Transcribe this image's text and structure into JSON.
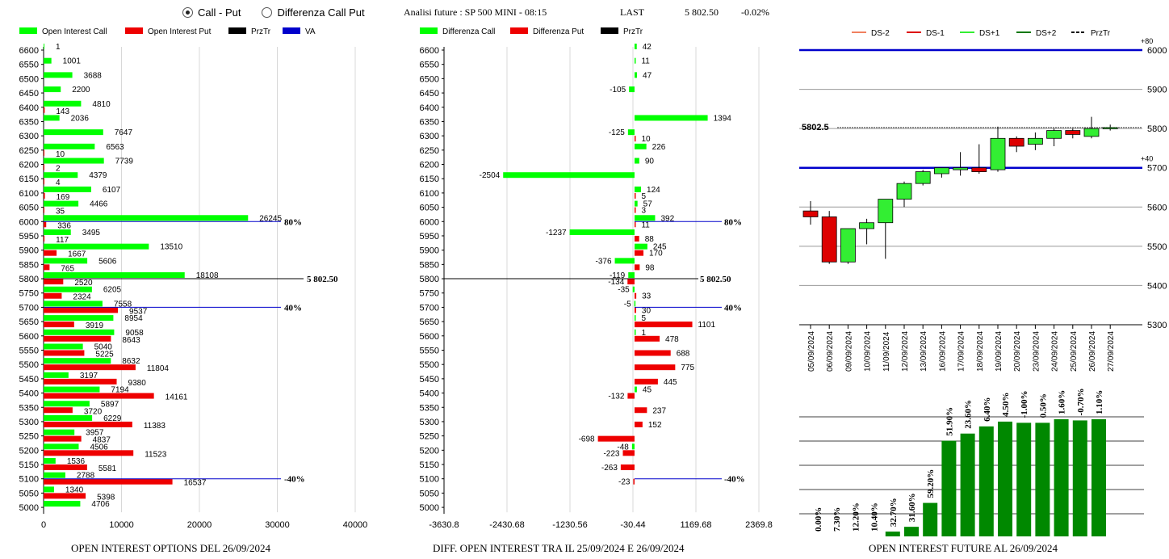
{
  "controls": {
    "radio_call_put": "Call - Put",
    "radio_diff": "Differenza Call Put",
    "selected": "call_put"
  },
  "header": {
    "title": "Analisi future : SP 500 MINI - 08:15",
    "last_label": "LAST",
    "last_value": "5 802.50",
    "change": "-0.02%"
  },
  "colors": {
    "call": "#00ff00",
    "put": "#ee0000",
    "va": "#0000cc",
    "prz": "#000000",
    "ds_minus2": "#f08060",
    "ds_minus1": "#dd0000",
    "ds_plus1": "#33ee33",
    "ds_plus2": "#007700",
    "future_bar": "#008800"
  },
  "chart_data": [
    {
      "type": "bar",
      "id": "oi_options",
      "title": "OPEN INTEREST OPTIONS DEL 26/09/2024",
      "legend": [
        "Open Interest Call",
        "Open Interest Put",
        "PrzTr",
        "VA"
      ],
      "categories": [
        "6600",
        "6550",
        "6500",
        "6450",
        "6400",
        "6350",
        "6300",
        "6250",
        "6200",
        "6150",
        "6100",
        "6050",
        "6000",
        "5950",
        "5900",
        "5850",
        "5800",
        "5750",
        "5700",
        "5650",
        "5600",
        "5550",
        "5500",
        "5450",
        "5400",
        "5350",
        "5300",
        "5250",
        "5200",
        "5150",
        "5100",
        "5050",
        "5000"
      ],
      "series": [
        {
          "name": "Open Interest Call",
          "values": [
            1,
            1001,
            3688,
            2200,
            4810,
            2036,
            7647,
            6563,
            7739,
            4379,
            6107,
            4466,
            26245,
            3495,
            13510,
            5606,
            18108,
            6205,
            7558,
            8954,
            9058,
            5040,
            8632,
            3197,
            7194,
            5897,
            6229,
            3957,
            4506,
            1536,
            2788,
            1340,
            4706
          ]
        },
        {
          "name": "Open Interest Put",
          "values": [
            null,
            null,
            null,
            null,
            143,
            null,
            null,
            10,
            2,
            4,
            169,
            35,
            336,
            117,
            1667,
            765,
            2520,
            2324,
            9537,
            3919,
            8643,
            5225,
            11804,
            9380,
            14161,
            3720,
            11383,
            4837,
            11523,
            5581,
            16537,
            5398,
            null
          ]
        }
      ],
      "xlim": [
        0,
        40000
      ],
      "xticks": [
        "0",
        "10000",
        "20000",
        "30000",
        "40000"
      ],
      "price_line": {
        "level": "5800",
        "label": "5 802.50"
      },
      "va_lines": [
        {
          "level": "6000",
          "label": "80%"
        },
        {
          "level": "5700",
          "label": "40%"
        },
        {
          "level": "5100",
          "label": "-40%"
        }
      ]
    },
    {
      "type": "bar",
      "id": "oi_diff",
      "title": "DIFF. OPEN INTEREST TRA IL 25/09/2024 E 26/09/2024",
      "legend": [
        "Differenza Call",
        "Differenza Put",
        "PrzTr"
      ],
      "categories": [
        "6600",
        "6550",
        "6500",
        "6450",
        "6400",
        "6350",
        "6300",
        "6250",
        "6200",
        "6150",
        "6100",
        "6050",
        "6000",
        "5950",
        "5900",
        "5850",
        "5800",
        "5750",
        "5700",
        "5650",
        "5600",
        "5550",
        "5500",
        "5450",
        "5400",
        "5350",
        "5300",
        "5250",
        "5200",
        "5150",
        "5100",
        "5050",
        "5000"
      ],
      "series": [
        {
          "name": "Differenza Call",
          "values": [
            42,
            11,
            47,
            -105,
            null,
            1394,
            -125,
            226,
            90,
            -2504,
            124,
            57,
            392,
            -1237,
            245,
            -376,
            -119,
            -35,
            -5,
            5,
            1,
            null,
            null,
            null,
            45,
            null,
            null,
            null,
            -48,
            null,
            null,
            null,
            null
          ]
        },
        {
          "name": "Differenza Put",
          "values": [
            null,
            null,
            null,
            null,
            null,
            null,
            10,
            null,
            null,
            null,
            5,
            3,
            11,
            88,
            170,
            98,
            -134,
            33,
            30,
            1101,
            478,
            688,
            775,
            445,
            -132,
            237,
            152,
            -698,
            -223,
            -263,
            -23,
            null,
            null
          ]
        }
      ],
      "xlim": [
        -3630.8,
        2369.8
      ],
      "xticks": [
        "-3630.8",
        "-2430.68",
        "-1230.56",
        "-30.44",
        "1169.68",
        "2369.8"
      ],
      "price_line": {
        "level": "5800",
        "label": "5 802.50"
      },
      "va_lines": [
        {
          "level": "6000",
          "label": "80%"
        },
        {
          "level": "5700",
          "label": "40%"
        },
        {
          "level": "5100",
          "label": "-40%"
        }
      ]
    },
    {
      "type": "candlestick",
      "id": "future_candles",
      "legend": [
        "DS-2",
        "DS-1",
        "DS+1",
        "DS+2",
        "PrzTr"
      ],
      "categories": [
        "05/09/2024",
        "06/09/2024",
        "09/09/2024",
        "10/09/2024",
        "11/09/2024",
        "12/09/2024",
        "13/09/2024",
        "16/09/2024",
        "17/09/2024",
        "18/09/2024",
        "19/09/2024",
        "20/09/2024",
        "23/09/2024",
        "24/09/2024",
        "25/09/2024",
        "26/09/2024",
        "27/09/2024"
      ],
      "candles": [
        {
          "o": 5590,
          "h": 5615,
          "l": 5555,
          "c": 5575
        },
        {
          "o": 5575,
          "h": 5590,
          "l": 5455,
          "c": 5460
        },
        {
          "o": 5460,
          "h": 5545,
          "l": 5455,
          "c": 5545
        },
        {
          "o": 5545,
          "h": 5570,
          "l": 5505,
          "c": 5560
        },
        {
          "o": 5560,
          "h": 5620,
          "l": 5468,
          "c": 5620
        },
        {
          "o": 5620,
          "h": 5665,
          "l": 5600,
          "c": 5660
        },
        {
          "o": 5660,
          "h": 5695,
          "l": 5655,
          "c": 5690
        },
        {
          "o": 5685,
          "h": 5700,
          "l": 5675,
          "c": 5700
        },
        {
          "o": 5695,
          "h": 5740,
          "l": 5680,
          "c": 5700
        },
        {
          "o": 5700,
          "h": 5760,
          "l": 5685,
          "c": 5690
        },
        {
          "o": 5695,
          "h": 5805,
          "l": 5690,
          "c": 5775
        },
        {
          "o": 5775,
          "h": 5780,
          "l": 5740,
          "c": 5755
        },
        {
          "o": 5760,
          "h": 5790,
          "l": 5745,
          "c": 5775
        },
        {
          "o": 5775,
          "h": 5800,
          "l": 5755,
          "c": 5795
        },
        {
          "o": 5795,
          "h": 5800,
          "l": 5775,
          "c": 5785
        },
        {
          "o": 5780,
          "h": 5830,
          "l": 5775,
          "c": 5800
        },
        {
          "o": 5802.5,
          "h": 5810,
          "l": 5795,
          "c": 5802.5
        }
      ],
      "ylim": [
        5300,
        6000
      ],
      "yticks": [
        "5300",
        "5400",
        "5500",
        "5600",
        "5700",
        "5800",
        "5900",
        "6000"
      ],
      "price_label": "5802.5",
      "price": 5802.5,
      "band_lines": [
        {
          "value": 6000,
          "label": "+80"
        },
        {
          "value": 5700,
          "label": "+40"
        }
      ]
    },
    {
      "type": "bar",
      "id": "oi_future",
      "title": "OPEN INTEREST FUTURE AL 26/09/2024",
      "labels": [
        "0.00%",
        "7.30%",
        "12.20%",
        "10.40%",
        "32.70%",
        "31.60%",
        "59.20%",
        "51.90%",
        "23.60%",
        "6.40%",
        "4.50%",
        "-1.00%",
        "0.50%",
        "1.60%",
        "-0.70%",
        "1.10%"
      ],
      "values": [
        0,
        0,
        0,
        0,
        4,
        8,
        28,
        80,
        86,
        92,
        96,
        95,
        95,
        98,
        97,
        98
      ],
      "ylim": [
        0,
        100
      ]
    }
  ]
}
